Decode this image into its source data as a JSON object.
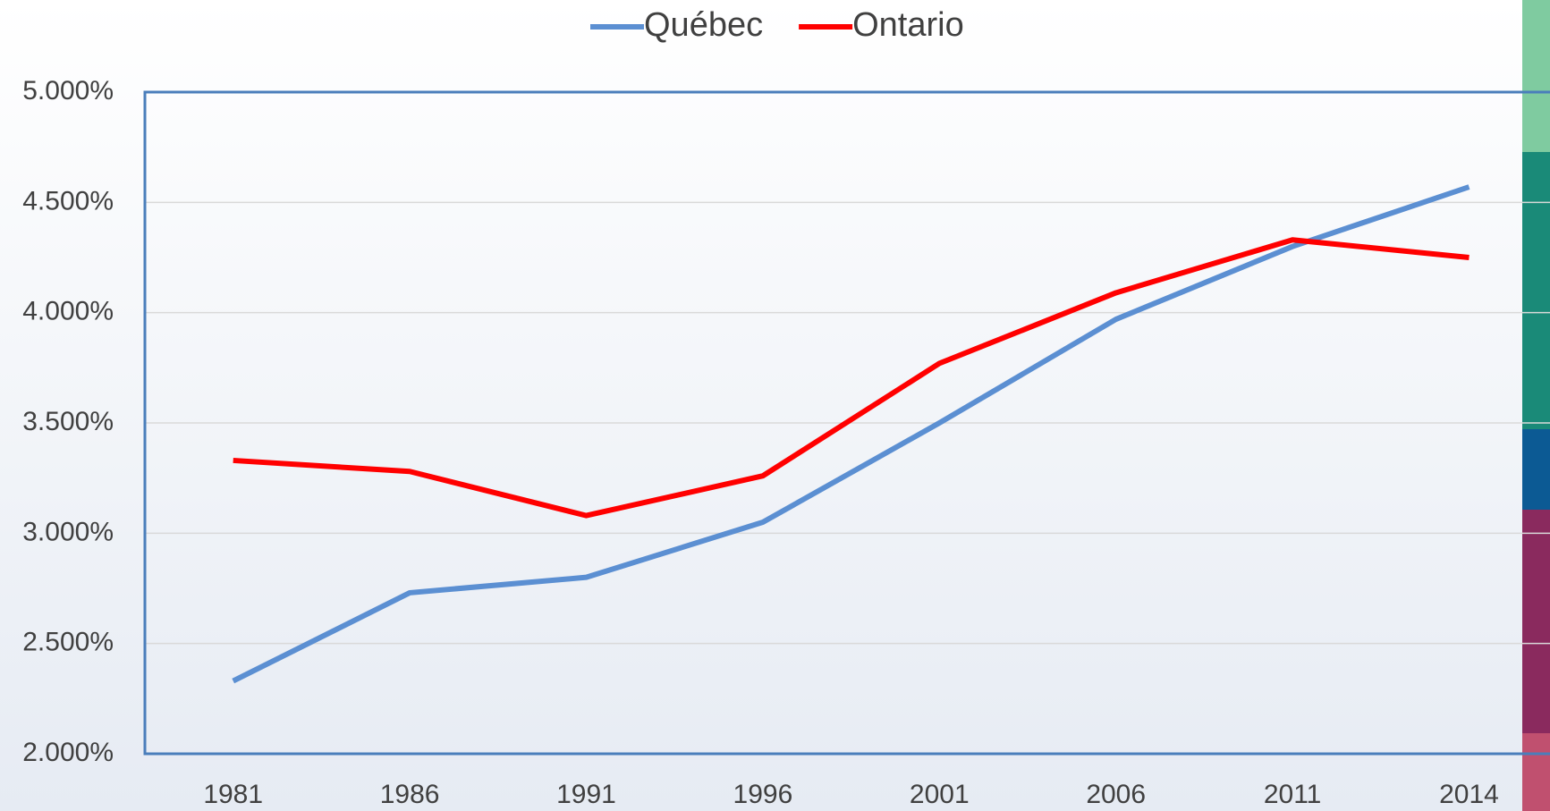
{
  "chart_data": {
    "type": "line",
    "categories": [
      "1981",
      "1986",
      "1991",
      "1996",
      "2001",
      "2006",
      "2011",
      "2014"
    ],
    "series": [
      {
        "name": "Québec",
        "color": "#5b8fd2",
        "values": [
          2.33,
          2.73,
          2.8,
          3.05,
          3.5,
          3.97,
          4.3,
          4.57
        ]
      },
      {
        "name": "Ontario",
        "color": "#ff0000",
        "values": [
          3.33,
          3.28,
          3.08,
          3.26,
          3.77,
          4.09,
          4.33,
          4.25
        ]
      }
    ],
    "ylim": [
      2,
      5
    ],
    "yticks": [
      {
        "value": 2,
        "label": "2.000%"
      },
      {
        "value": 2.5,
        "label": "2.500%"
      },
      {
        "value": 3,
        "label": "3.000%"
      },
      {
        "value": 3.5,
        "label": "3.500%"
      },
      {
        "value": 4,
        "label": "4.000%"
      },
      {
        "value": 4.5,
        "label": "4.500%"
      },
      {
        "value": 5,
        "label": "5.000%"
      }
    ],
    "grid": true,
    "legend": "top"
  }
}
